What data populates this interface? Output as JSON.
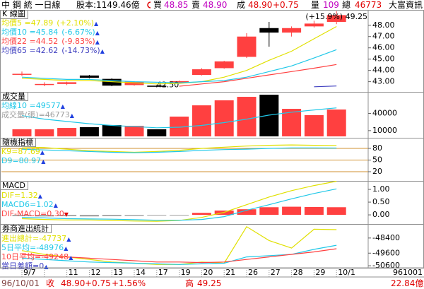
{
  "header": {
    "title": "中 鋼 統 一日線",
    "capital": "股本:1149.46億",
    "bid_label": "買",
    "bid": "48.85",
    "ask_label": "賣",
    "ask": "48.90",
    "trade_label": "成",
    "price": "48.90",
    "change": "+0.75",
    "vol_label": "量",
    "volume": "109",
    "total_label": "總",
    "total": "46773",
    "brand": "大富資訊"
  },
  "footer": {
    "date": "96/10/01",
    "close_label": "收",
    "close": "48.90",
    "change": "+0.75",
    "pct": "+1.56%",
    "high_label": "高",
    "high": "49.25",
    "amount": "22.84億",
    "stamp": "961001"
  },
  "chart_data": [
    {
      "type": "candlestick",
      "title": "K 線圖",
      "categories": [
        "9/7",
        null,
        "11",
        "12",
        "13",
        "14",
        "17",
        "19",
        "20",
        "21",
        "26",
        "27",
        "28",
        "29",
        "10/1"
      ],
      "open": [
        43.65,
        42.75,
        42.8,
        43.55,
        43.25,
        42.7,
        42.65,
        42.9,
        43.6,
        44.2,
        45.2,
        47.75,
        47.35,
        47.9,
        48.3
      ],
      "high": [
        43.9,
        42.95,
        43.0,
        43.6,
        43.3,
        43.05,
        42.7,
        43.1,
        44.2,
        44.85,
        47.3,
        48.3,
        47.9,
        48.4,
        49.25
      ],
      "low": [
        43.5,
        42.6,
        42.7,
        43.3,
        42.6,
        42.65,
        42.5,
        42.85,
        43.55,
        44.15,
        45.1,
        46.1,
        47.0,
        47.8,
        48.1
      ],
      "close": [
        43.7,
        42.8,
        42.95,
        43.35,
        42.65,
        43.0,
        42.55,
        43.05,
        44.1,
        44.8,
        47.0,
        47.35,
        47.75,
        48.15,
        48.9
      ],
      "color_up": "#ff4040",
      "color_down": "#000000",
      "high_label": "(+15.9%) 49.25",
      "low_label": "42.50",
      "ylim": [
        42.1,
        49.3
      ],
      "yticks": [
        {
          "value": 48,
          "label": "48.00"
        },
        {
          "value": 47,
          "label": "47.00"
        },
        {
          "value": 46,
          "label": "46.00"
        },
        {
          "value": 45,
          "label": "45.00"
        },
        {
          "value": 44,
          "label": "44.00"
        },
        {
          "value": 43,
          "label": "43.00"
        }
      ],
      "grid": false,
      "series": [
        {
          "name": "均價5 =47.89",
          "change": "(+2.10%)",
          "arrow": "▲",
          "color": "#e0e000",
          "values": [
            43.3,
            43.2,
            43.1,
            43.1,
            43.0,
            42.9,
            42.8,
            42.85,
            43.0,
            43.4,
            44.0,
            44.9,
            45.7,
            46.8,
            47.89
          ]
        },
        {
          "name": "均價10 =45.84",
          "change": "(-6.67%)",
          "arrow": "▲",
          "color": "#20c8e8",
          "values": [
            43.4,
            43.3,
            43.2,
            43.2,
            43.1,
            43.0,
            42.95,
            42.9,
            43.0,
            43.1,
            43.4,
            43.9,
            44.4,
            45.1,
            45.84
          ]
        },
        {
          "name": "均價22 =44.52",
          "change": "(-9.83%)",
          "arrow": "▲",
          "color": "#ff4040",
          "values": [
            null,
            null,
            null,
            null,
            null,
            null,
            null,
            42.6,
            42.8,
            43.0,
            43.3,
            43.6,
            43.9,
            44.2,
            44.52
          ]
        },
        {
          "name": "均價65 =42.62",
          "change": "(-14.73%)",
          "arrow": "▲",
          "color": "#4040c0",
          "values": [
            null,
            null,
            null,
            null,
            null,
            null,
            null,
            null,
            null,
            null,
            null,
            null,
            null,
            42.55,
            42.62
          ]
        }
      ]
    },
    {
      "type": "bar",
      "title": "成交量",
      "values": [
        12300,
        12300,
        14700,
        16000,
        19700,
        18400,
        12300,
        34400,
        54000,
        62700,
        68800,
        72500,
        47900,
        36900,
        46773
      ],
      "colors": [
        "#ff4040",
        "#ff4040",
        "#ff4040",
        "#000000",
        "#000000",
        "#ff4040",
        "#000000",
        "#ff4040",
        "#ff4040",
        "#ff4040",
        "#ff4040",
        "#000000",
        "#ff4040",
        "#ff4040",
        "#ff4040"
      ],
      "bar_name": "成交量(張)=46773",
      "bar_arrow": "▲",
      "bar_name_color": "#a0a0a0",
      "ylim": [
        0,
        75000
      ],
      "yticks": [
        40000,
        10000
      ],
      "grid": false,
      "series": [
        {
          "name": "均線10 =49577",
          "arrow": "▲",
          "color": "#20c8e8",
          "values": [
            36000,
            30000,
            26000,
            22000,
            19000,
            17000,
            15000,
            16000,
            19000,
            24000,
            30000,
            37000,
            42000,
            46000,
            49577
          ]
        }
      ]
    },
    {
      "type": "line",
      "title": "隨機指標",
      "ylim": [
        0,
        100
      ],
      "yticks": [
        80,
        50,
        20
      ],
      "grid": true,
      "grid_color": "#d09030",
      "series": [
        {
          "name": "K9=87.69",
          "arrow": "▲",
          "color": "#e0e000",
          "values": [
            84,
            82,
            78,
            74,
            72,
            70,
            72,
            75,
            80,
            83,
            86,
            88,
            89,
            88,
            87.69
          ]
        },
        {
          "name": "D9=80.97",
          "arrow": "▲",
          "color": "#20c8e8",
          "values": [
            78,
            76,
            74,
            72,
            70,
            69,
            70,
            72,
            75,
            77,
            78,
            80,
            81,
            81,
            80.97
          ]
        }
      ]
    },
    {
      "type": "macd",
      "title": "MACD",
      "values": [
        -0.05,
        -0.06,
        -0.05,
        -0.06,
        -0.05,
        -0.04,
        -0.02,
        -0.01,
        0.08,
        0.17,
        0.22,
        0.3,
        0.32,
        0.31,
        0.3
      ],
      "color_pos": "#ff4040",
      "color_neg": "#a0a0a0",
      "bar_name": "DIF-MACD=0.30",
      "bar_arrow": "▼",
      "bar_name_color": "#ff4040",
      "ylim": [
        -0.33,
        1.25
      ],
      "yticks": [
        {
          "value": 1,
          "label": "1.00"
        },
        {
          "value": 0.5,
          "label": "0.50"
        },
        {
          "value": 0,
          "label": "0.00"
        }
      ],
      "grid": false,
      "series": [
        {
          "name": "DIF=1.32",
          "arrow": "▲",
          "color": "#e0e000",
          "values": [
            -0.15,
            -0.18,
            -0.2,
            -0.2,
            -0.22,
            -0.24,
            -0.25,
            -0.22,
            -0.1,
            0.1,
            0.4,
            0.7,
            0.95,
            1.15,
            1.32
          ]
        },
        {
          "name": "MACD6=1.02",
          "arrow": "▲",
          "color": "#20c8e8",
          "values": [
            -0.1,
            -0.12,
            -0.15,
            -0.16,
            -0.17,
            -0.19,
            -0.21,
            -0.21,
            -0.18,
            -0.07,
            0.18,
            0.4,
            0.63,
            0.84,
            1.02
          ]
        }
      ]
    },
    {
      "type": "line",
      "title": "券商進出統計",
      "ylim": [
        -50650,
        -47400
      ],
      "yticks": [
        -48400,
        -49600,
        -50600
      ],
      "grid": false,
      "series": [
        {
          "name": "進出總計=-47737",
          "arrow": "▲",
          "color": "#e0e000",
          "values": [
            -49400,
            -49700,
            -49900,
            -50100,
            -50300,
            -50400,
            -50500,
            -50500,
            -50300,
            -50400,
            -47500,
            -48600,
            -49200,
            -47700,
            -47737
          ]
        },
        {
          "name": "5日平均=-48976",
          "arrow": "▲",
          "color": "#20c8e8",
          "values": [
            -50000,
            -50100,
            -50200,
            -50300,
            -50350,
            -50400,
            -50450,
            -50500,
            -50450,
            -50400,
            -49900,
            -49800,
            -49700,
            -49300,
            -48976
          ]
        },
        {
          "name": "10日平均=-49248",
          "arrow": "▲",
          "color": "#ff4040",
          "values": [
            -49700,
            -49800,
            -49900,
            -50000,
            -50100,
            -50200,
            -50300,
            -50300,
            -50350,
            -50300,
            -50100,
            -49900,
            -49700,
            -49500,
            -49248
          ]
        },
        {
          "name": "當日差額=0",
          "arrow": "▲",
          "color": "#4040c0",
          "values": [
            null,
            null,
            null,
            null,
            null,
            null,
            null,
            null,
            null,
            null,
            null,
            null,
            null,
            null,
            null
          ]
        }
      ]
    }
  ]
}
